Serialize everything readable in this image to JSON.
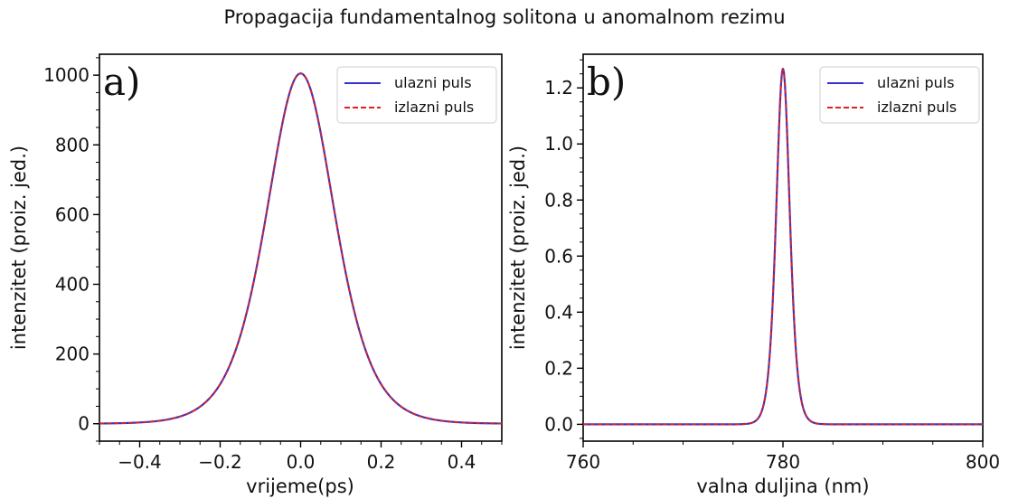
{
  "figure": {
    "title": "Propagacija fundamentalnog solitona u anomalnom rezimu"
  },
  "chart_data": [
    {
      "type": "line",
      "panel_label": "a)",
      "xlabel": "vrijeme(ps)",
      "ylabel": "intenzitet (proiz. jed.)",
      "xlim": [
        -0.5,
        0.5
      ],
      "ylim": [
        -50,
        1060
      ],
      "xticks": [
        -0.4,
        -0.2,
        0.0,
        0.2,
        0.4
      ],
      "xtick_labels": [
        "−0.4",
        "−0.2",
        "0.0",
        "0.2",
        "0.4"
      ],
      "yticks": [
        0,
        200,
        400,
        600,
        800,
        1000
      ],
      "ytick_labels": [
        "0",
        "200",
        "400",
        "600",
        "800",
        "1000"
      ],
      "grid": false,
      "legend_position": "top-right",
      "series": [
        {
          "name": "ulazni puls",
          "color": "#3333cc",
          "style": "solid",
          "x": [
            -0.5,
            -0.45,
            -0.4,
            -0.35,
            -0.3,
            -0.25,
            -0.2,
            -0.15,
            -0.1,
            -0.05,
            0.0,
            0.05,
            0.1,
            0.15,
            0.2,
            0.25,
            0.3,
            0.35,
            0.4,
            0.45,
            0.5
          ],
          "y": [
            3,
            6,
            12,
            25,
            51,
            103,
            199,
            358,
            585,
            850,
            1005,
            850,
            585,
            358,
            199,
            103,
            51,
            25,
            12,
            6,
            3
          ]
        },
        {
          "name": "izlazni puls",
          "color": "#dd2222",
          "style": "dashed",
          "x": [
            -0.5,
            -0.45,
            -0.4,
            -0.35,
            -0.3,
            -0.25,
            -0.2,
            -0.15,
            -0.1,
            -0.05,
            0.0,
            0.05,
            0.1,
            0.15,
            0.2,
            0.25,
            0.3,
            0.35,
            0.4,
            0.45,
            0.5
          ],
          "y": [
            3,
            6,
            12,
            25,
            51,
            103,
            199,
            358,
            585,
            850,
            1005,
            850,
            585,
            358,
            199,
            103,
            51,
            25,
            12,
            6,
            3
          ]
        }
      ]
    },
    {
      "type": "line",
      "panel_label": "b)",
      "xlabel": "valna duljina (nm)",
      "ylabel": "intenzitet (proiz. jed.)",
      "xlim": [
        760,
        800
      ],
      "ylim": [
        -0.06,
        1.32
      ],
      "xticks": [
        760,
        780,
        800
      ],
      "xtick_labels": [
        "760",
        "780",
        "800"
      ],
      "yticks": [
        0.0,
        0.2,
        0.4,
        0.6,
        0.8,
        1.0,
        1.2
      ],
      "ytick_labels": [
        "0.0",
        "0.2",
        "0.4",
        "0.6",
        "0.8",
        "1.0",
        "1.2"
      ],
      "grid": false,
      "legend_position": "top-right",
      "series": [
        {
          "name": "ulazni puls",
          "color": "#3333cc",
          "style": "solid",
          "x": [
            760,
            770,
            774,
            775,
            776,
            777,
            778,
            779,
            780,
            781,
            782,
            783,
            784,
            785,
            786,
            790,
            800
          ],
          "y": [
            0,
            0,
            0.003,
            0.01,
            0.03,
            0.09,
            0.26,
            0.7,
            1.27,
            0.7,
            0.26,
            0.09,
            0.03,
            0.01,
            0.003,
            0,
            0
          ]
        },
        {
          "name": "izlazni puls",
          "color": "#dd2222",
          "style": "dashed",
          "x": [
            760,
            770,
            774,
            775,
            776,
            777,
            778,
            779,
            780,
            781,
            782,
            783,
            784,
            785,
            786,
            790,
            800
          ],
          "y": [
            0,
            0,
            0.003,
            0.01,
            0.03,
            0.09,
            0.26,
            0.7,
            1.27,
            0.7,
            0.26,
            0.09,
            0.03,
            0.01,
            0.003,
            0,
            0
          ]
        }
      ]
    }
  ]
}
